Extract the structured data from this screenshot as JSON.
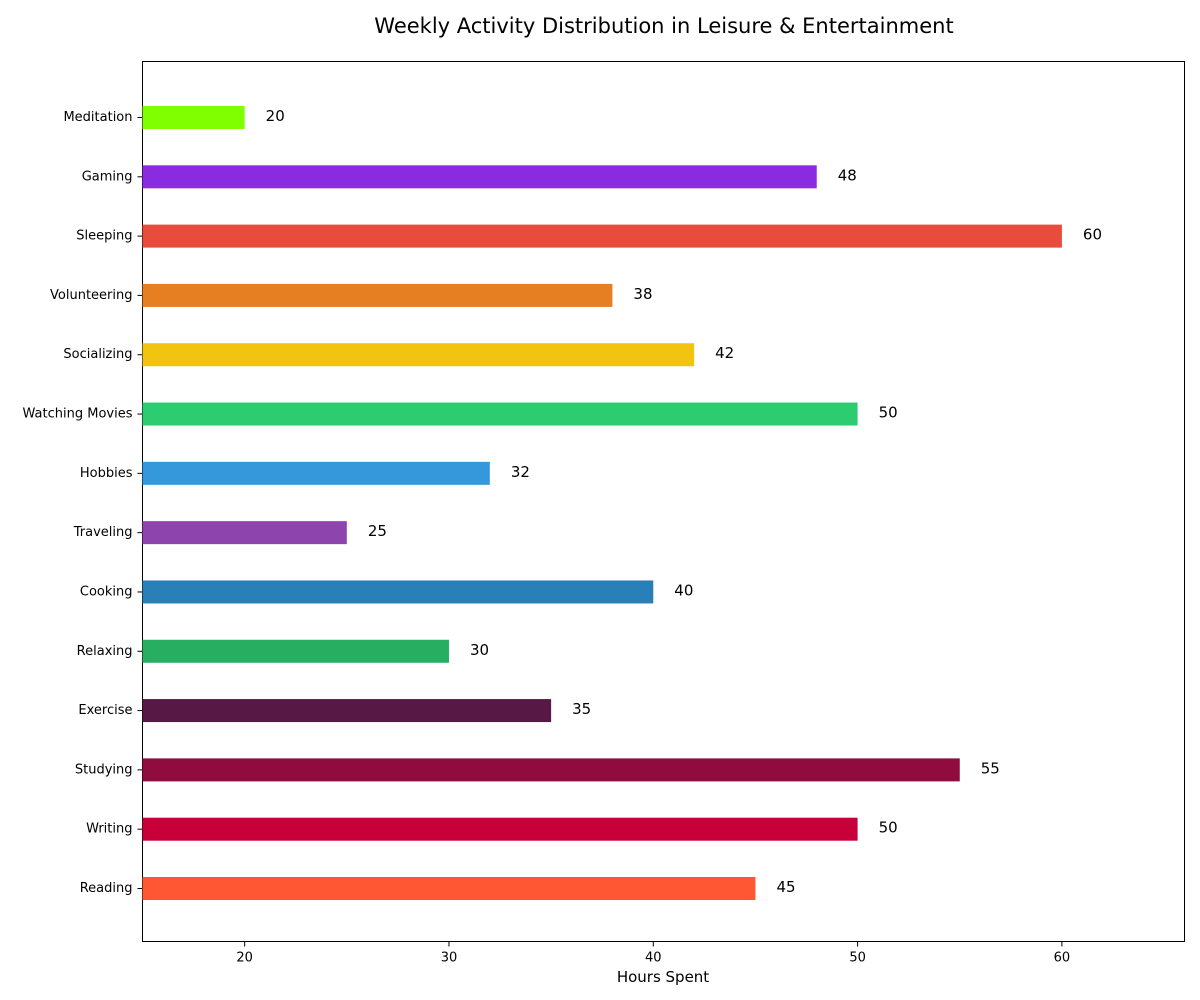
{
  "chart_data": {
    "type": "bar",
    "orientation": "horizontal",
    "title": "Weekly Activity Distribution in Leisure & Entertainment",
    "xlabel": "Hours Spent",
    "ylabel": "",
    "xlim": [
      15,
      66
    ],
    "xticks": [
      20,
      30,
      40,
      50,
      60
    ],
    "grid": false,
    "legend": "none",
    "categories": [
      "Reading",
      "Writing",
      "Studying",
      "Exercise",
      "Relaxing",
      "Cooking",
      "Traveling",
      "Hobbies",
      "Watching Movies",
      "Socializing",
      "Volunteering",
      "Sleeping",
      "Gaming",
      "Meditation"
    ],
    "values": [
      45,
      50,
      55,
      35,
      30,
      40,
      25,
      32,
      50,
      42,
      38,
      60,
      48,
      20
    ],
    "colors": [
      "#FF5733",
      "#C70039",
      "#900C3F",
      "#581845",
      "#27AE60",
      "#2980B9",
      "#8E44AD",
      "#3498DB",
      "#2ECC71",
      "#F1C40F",
      "#E67E22",
      "#E74C3C",
      "#8A2BE2",
      "#7FFF00"
    ]
  }
}
